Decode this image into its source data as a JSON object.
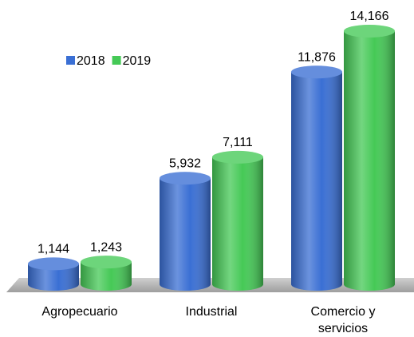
{
  "chart_data": {
    "type": "bar",
    "categories": [
      "Agropecuario",
      "Industrial",
      "Comercio y servicios"
    ],
    "series": [
      {
        "name": "2018",
        "color": "#3a6fd4",
        "values": [
          1144,
          5932,
          11876
        ],
        "value_labels": [
          "1,144",
          "5,932",
          "11,876"
        ]
      },
      {
        "name": "2019",
        "color": "#45c956",
        "values": [
          1243,
          7111,
          14166
        ],
        "value_labels": [
          "1,243",
          "7,111",
          "14,166"
        ]
      }
    ]
  }
}
